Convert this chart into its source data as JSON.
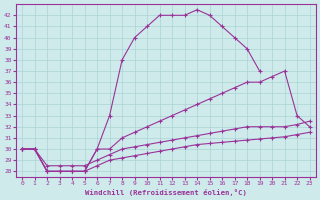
{
  "xlabel": "Windchill (Refroidissement éolien,°C)",
  "background_color": "#ceeaea",
  "grid_color": "#aad4d4",
  "line_color": "#993399",
  "xlim": [
    -0.5,
    23.5
  ],
  "ylim": [
    27.5,
    43
  ],
  "xticks": [
    0,
    1,
    2,
    3,
    4,
    5,
    6,
    7,
    8,
    9,
    10,
    11,
    12,
    13,
    14,
    15,
    16,
    17,
    18,
    19,
    20,
    21,
    22,
    23
  ],
  "yticks": [
    28,
    29,
    30,
    31,
    32,
    33,
    34,
    35,
    36,
    37,
    38,
    39,
    40,
    41,
    42
  ],
  "c1_x": [
    0,
    1,
    2,
    3,
    4,
    5,
    6,
    7,
    8,
    9,
    10,
    11,
    12,
    13,
    14,
    15,
    16,
    17,
    18,
    19
  ],
  "c1_y": [
    30,
    30,
    28,
    28,
    28,
    28,
    30,
    33,
    38,
    40,
    41,
    42,
    42,
    42,
    42.5,
    42,
    41,
    40,
    39,
    37
  ],
  "c2_x": [
    0,
    1,
    2,
    3,
    4,
    5,
    6,
    7,
    8,
    9,
    10,
    11,
    12,
    13,
    14,
    15,
    16,
    17,
    18,
    19,
    20,
    21,
    22,
    23
  ],
  "c2_y": [
    30,
    30,
    28,
    28,
    28,
    28,
    30,
    30,
    31,
    31.5,
    32,
    32.5,
    33,
    33.5,
    34,
    34.5,
    35,
    35.5,
    36,
    36,
    36.5,
    37,
    33,
    32
  ],
  "c3_x": [
    0,
    1,
    2,
    3,
    4,
    5,
    6,
    7,
    8,
    9,
    10,
    11,
    12,
    13,
    14,
    15,
    16,
    17,
    18,
    19,
    20,
    21,
    22,
    23
  ],
  "c3_y": [
    30,
    30,
    28.5,
    28.5,
    28.5,
    28.5,
    29,
    29.5,
    30,
    30.2,
    30.4,
    30.6,
    30.8,
    31,
    31.2,
    31.4,
    31.6,
    31.8,
    32,
    32,
    32,
    32,
    32.2,
    32.5
  ],
  "c4_x": [
    0,
    1,
    2,
    3,
    4,
    5,
    6,
    7,
    8,
    9,
    10,
    11,
    12,
    13,
    14,
    15,
    16,
    17,
    18,
    19,
    20,
    21,
    22,
    23
  ],
  "c4_y": [
    30,
    30,
    28,
    28,
    28,
    28,
    28.5,
    29,
    29.2,
    29.4,
    29.6,
    29.8,
    30,
    30.2,
    30.4,
    30.5,
    30.6,
    30.7,
    30.8,
    30.9,
    31,
    31.1,
    31.3,
    31.5
  ]
}
